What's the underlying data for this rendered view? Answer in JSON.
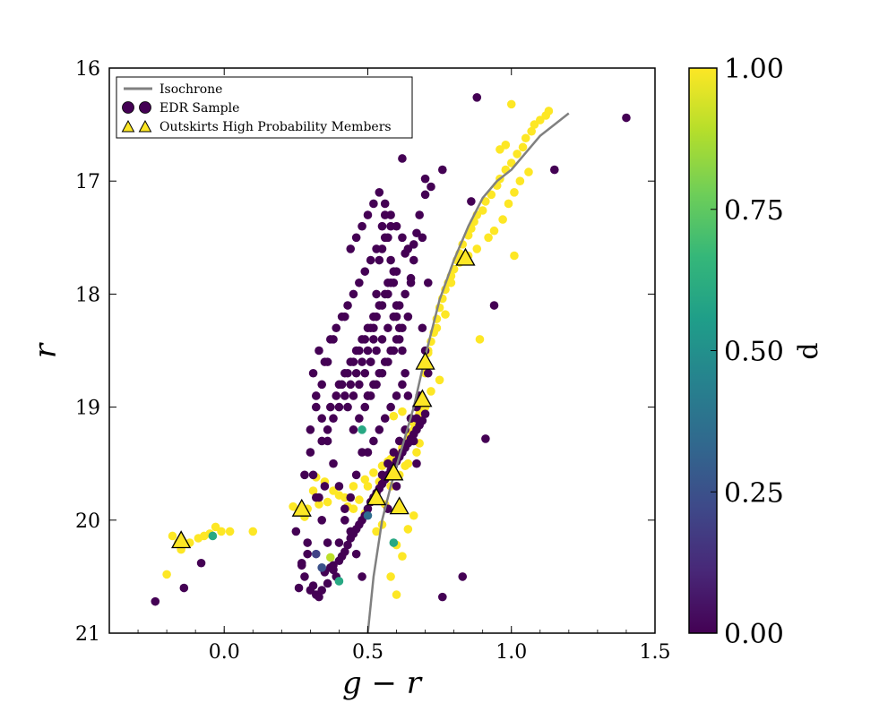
{
  "chart_data": {
    "type": "scatter",
    "title": "",
    "xlabel": "g − r",
    "ylabel": "r",
    "xlim": [
      -0.4,
      1.5
    ],
    "ylim": [
      21,
      16
    ],
    "y_inverted": true,
    "xticks": [
      0.0,
      0.5,
      1.0,
      1.5
    ],
    "xtick_labels": [
      "0.0",
      "0.5",
      "1.0",
      "1.5"
    ],
    "yticks": [
      16,
      17,
      18,
      19,
      20,
      21
    ],
    "ytick_labels": [
      "16",
      "17",
      "18",
      "19",
      "20",
      "21"
    ],
    "grid": false,
    "legend_position": "top-left",
    "legend": [
      {
        "label": "Isochrone",
        "marker": "line"
      },
      {
        "label": "EDR Sample",
        "marker": "circle"
      },
      {
        "label": "Outskirts High Probability Members",
        "marker": "triangle"
      }
    ],
    "colorbar": {
      "label": "d",
      "range": [
        0.0,
        1.0
      ],
      "ticks": [
        0.0,
        0.25,
        0.5,
        0.75,
        1.0
      ],
      "tick_labels": [
        "0.00",
        "0.25",
        "0.50",
        "0.75",
        "1.00"
      ],
      "colormap": "viridis",
      "stops": [
        "#440154",
        "#482878",
        "#3e4989",
        "#31688e",
        "#26828e",
        "#1f9e89",
        "#35b779",
        "#6ece58",
        "#b5de2b",
        "#fde725"
      ]
    },
    "isochrone": {
      "name": "Isochrone",
      "color": "#808080",
      "x": [
        0.5,
        0.52,
        0.55,
        0.58,
        0.62,
        0.66,
        0.7,
        0.75,
        0.8,
        0.85,
        0.9,
        0.95,
        1.0,
        1.05,
        1.1,
        1.15,
        1.2
      ],
      "y": [
        21.0,
        20.5,
        20.0,
        19.7,
        19.35,
        19.0,
        18.55,
        18.05,
        17.7,
        17.4,
        17.15,
        17.0,
        16.9,
        16.75,
        16.6,
        16.5,
        16.4
      ]
    },
    "high_probability_members": {
      "name": "Outskirts High Probability Members",
      "d": 1.0,
      "x": [
        -0.15,
        0.27,
        0.53,
        0.59,
        0.61,
        0.69,
        0.7,
        0.84
      ],
      "y": [
        20.18,
        19.9,
        19.8,
        19.58,
        19.88,
        18.93,
        18.6,
        17.68
      ]
    },
    "edr_sample": {
      "name": "EDR Sample",
      "members_d1": {
        "d": 1.0,
        "x": [
          -0.2,
          -0.16,
          -0.15,
          -0.12,
          -0.09,
          -0.07,
          -0.05,
          -0.03,
          -0.01,
          0.02,
          0.1,
          -0.18,
          0.24,
          0.26,
          0.28,
          0.33,
          0.36,
          0.4,
          0.45,
          0.49,
          0.52,
          0.55,
          0.57,
          0.58,
          0.6,
          0.62,
          0.63,
          0.64,
          0.65,
          0.66,
          0.67,
          0.68,
          0.68,
          0.69,
          0.7,
          0.71,
          0.72,
          0.73,
          0.74,
          0.75,
          0.76,
          0.77,
          0.78,
          0.79,
          0.8,
          0.81,
          0.82,
          0.83,
          0.85,
          0.86,
          0.87,
          0.88,
          0.9,
          0.91,
          0.93,
          0.95,
          0.96,
          0.98,
          1.0,
          1.02,
          1.04,
          1.05,
          1.07,
          1.08,
          1.1,
          1.12,
          1.13,
          0.62,
          0.6,
          0.64,
          0.66,
          0.55,
          0.53,
          0.49,
          0.45,
          0.42,
          0.38,
          0.35,
          0.32,
          0.58,
          0.61,
          0.63,
          0.72,
          0.75,
          0.89,
          1.01,
          0.6,
          0.58,
          0.66,
          0.7,
          0.62,
          0.59,
          0.56,
          0.43,
          0.47,
          0.31,
          0.29,
          0.5,
          0.54,
          0.57,
          0.64,
          0.67,
          0.68,
          0.71,
          0.74,
          0.77,
          0.79,
          0.82,
          0.85,
          0.88,
          0.92,
          0.94,
          0.97,
          0.99,
          1.01,
          1.03,
          1.06,
          0.98,
          0.96,
          1.0,
          0.6
        ],
        "y": [
          20.48,
          20.2,
          20.26,
          20.2,
          20.16,
          20.14,
          20.12,
          20.06,
          20.1,
          20.1,
          20.1,
          20.14,
          19.88,
          19.92,
          19.97,
          19.86,
          19.84,
          19.78,
          19.7,
          19.64,
          19.58,
          19.52,
          19.48,
          19.46,
          19.42,
          19.36,
          19.32,
          19.28,
          19.24,
          19.14,
          19.1,
          19.06,
          19.02,
          18.98,
          18.7,
          18.52,
          18.42,
          18.34,
          18.22,
          18.12,
          18.04,
          17.96,
          17.9,
          17.84,
          17.78,
          17.7,
          17.64,
          17.56,
          17.48,
          17.42,
          17.36,
          17.3,
          17.26,
          17.18,
          17.12,
          17.04,
          16.98,
          16.9,
          16.84,
          16.76,
          16.7,
          16.62,
          16.56,
          16.5,
          16.46,
          16.42,
          16.38,
          20.32,
          20.22,
          20.08,
          19.96,
          20.04,
          20.1,
          19.94,
          19.9,
          19.8,
          19.74,
          19.66,
          19.62,
          19.7,
          19.6,
          19.52,
          18.86,
          18.76,
          18.4,
          17.66,
          20.66,
          20.5,
          19.2,
          19.0,
          19.04,
          19.08,
          19.86,
          19.88,
          19.82,
          19.74,
          19.9,
          19.7,
          19.66,
          19.62,
          19.5,
          19.4,
          19.32,
          18.5,
          18.3,
          18.18,
          17.9,
          17.72,
          17.66,
          17.6,
          17.5,
          17.44,
          17.34,
          17.2,
          17.1,
          17.0,
          16.92,
          16.68,
          16.72,
          16.32,
          19.42
        ]
      },
      "members_d0": {
        "d": 0.0,
        "x": [
          -0.24,
          -0.08,
          -0.14,
          0.27,
          0.26,
          0.28,
          0.29,
          0.3,
          0.31,
          0.32,
          0.33,
          0.34,
          0.35,
          0.36,
          0.37,
          0.38,
          0.39,
          0.4,
          0.41,
          0.42,
          0.43,
          0.44,
          0.45,
          0.46,
          0.47,
          0.48,
          0.49,
          0.5,
          0.51,
          0.52,
          0.53,
          0.54,
          0.55,
          0.56,
          0.57,
          0.58,
          0.59,
          0.6,
          0.61,
          0.62,
          0.63,
          0.64,
          0.65,
          0.66,
          0.67,
          0.68,
          0.69,
          0.7,
          0.72,
          0.76,
          0.76,
          0.83,
          0.91,
          0.94,
          1.15,
          1.4,
          0.86,
          0.88,
          0.7,
          0.7,
          0.67,
          0.65,
          0.62,
          0.55,
          0.57,
          0.59,
          0.6,
          0.63,
          0.66,
          0.35,
          0.37,
          0.39,
          0.41,
          0.43,
          0.45,
          0.47,
          0.49,
          0.51,
          0.53,
          0.56,
          0.58,
          0.33,
          0.31,
          0.32,
          0.34,
          0.36,
          0.38,
          0.4,
          0.42,
          0.44,
          0.46,
          0.48,
          0.5,
          0.52,
          0.54,
          0.56,
          0.58,
          0.6,
          0.62,
          0.64,
          0.4,
          0.42,
          0.44,
          0.46,
          0.48,
          0.5,
          0.52,
          0.54,
          0.56,
          0.58,
          0.6,
          0.43,
          0.45,
          0.47,
          0.49,
          0.51,
          0.53,
          0.55,
          0.57,
          0.59,
          0.61,
          0.63,
          0.65,
          0.45,
          0.47,
          0.49,
          0.51,
          0.53,
          0.55,
          0.57,
          0.59,
          0.61,
          0.5,
          0.52,
          0.54,
          0.56,
          0.58,
          0.6,
          0.62,
          0.55,
          0.57,
          0.59,
          0.61,
          0.63,
          0.65,
          0.67,
          0.34,
          0.36,
          0.38,
          0.4,
          0.42,
          0.44,
          0.46,
          0.48,
          0.5,
          0.52,
          0.3,
          0.28,
          0.32,
          0.34,
          0.36,
          0.38,
          0.4,
          0.42,
          0.44,
          0.46,
          0.48,
          0.37,
          0.39,
          0.41,
          0.43,
          0.45,
          0.47,
          0.49,
          0.51,
          0.53,
          0.55,
          0.57,
          0.44,
          0.46,
          0.48,
          0.5,
          0.52,
          0.54,
          0.56,
          0.58,
          0.6,
          0.62,
          0.64,
          0.66,
          0.42,
          0.38,
          0.36,
          0.34,
          0.32,
          0.3,
          0.31,
          0.33,
          0.35,
          0.25,
          0.27,
          0.29,
          0.5,
          0.51,
          0.52,
          0.53,
          0.54,
          0.55,
          0.56,
          0.57,
          0.58,
          0.59,
          0.6,
          0.61,
          0.62,
          0.63,
          0.64,
          0.65,
          0.66,
          0.67,
          0.68,
          0.69,
          0.71,
          0.69,
          0.7,
          0.71,
          0.68,
          0.67,
          0.65,
          0.6,
          0.57
        ],
        "y": [
          20.72,
          20.38,
          20.6,
          20.38,
          20.6,
          20.5,
          20.3,
          20.62,
          20.58,
          20.66,
          20.68,
          20.62,
          20.46,
          20.56,
          20.42,
          20.44,
          20.5,
          20.36,
          20.32,
          20.28,
          20.22,
          20.16,
          20.12,
          20.08,
          20.04,
          20.0,
          19.96,
          19.9,
          19.84,
          19.8,
          19.76,
          19.72,
          19.68,
          19.64,
          19.6,
          19.56,
          19.52,
          19.48,
          19.44,
          19.4,
          19.36,
          19.32,
          19.28,
          19.24,
          19.2,
          19.16,
          19.12,
          19.06,
          17.05,
          16.9,
          20.68,
          20.5,
          19.28,
          18.1,
          16.9,
          16.44,
          17.18,
          16.26,
          16.98,
          17.12,
          17.46,
          17.86,
          16.8,
          17.6,
          17.9,
          17.8,
          18.2,
          17.64,
          17.56,
          18.6,
          18.4,
          18.3,
          18.2,
          18.1,
          18.0,
          17.9,
          17.8,
          17.7,
          17.6,
          17.5,
          17.4,
          18.5,
          18.7,
          18.9,
          19.1,
          19.3,
          19.5,
          19.7,
          19.9,
          20.1,
          20.3,
          20.5,
          18.9,
          18.8,
          18.7,
          18.6,
          18.5,
          18.4,
          18.3,
          18.2,
          18.8,
          18.7,
          18.6,
          18.5,
          18.4,
          18.3,
          18.2,
          18.1,
          18.0,
          17.9,
          17.8,
          19.0,
          18.9,
          18.8,
          18.7,
          18.6,
          18.5,
          18.4,
          18.3,
          18.2,
          18.1,
          18.0,
          17.9,
          19.2,
          19.1,
          19.0,
          18.9,
          18.8,
          18.7,
          18.6,
          18.5,
          18.4,
          19.4,
          19.3,
          19.2,
          19.1,
          19.0,
          18.9,
          18.8,
          19.6,
          19.5,
          19.4,
          19.3,
          19.2,
          19.1,
          19.0,
          19.3,
          19.2,
          19.1,
          19.0,
          18.9,
          18.8,
          18.7,
          18.6,
          18.5,
          18.4,
          19.4,
          19.6,
          19.8,
          20.0,
          20.2,
          20.4,
          20.2,
          20.0,
          19.8,
          19.6,
          19.4,
          19.0,
          18.9,
          18.8,
          18.7,
          18.6,
          18.5,
          18.4,
          18.3,
          18.2,
          18.1,
          18.0,
          17.6,
          17.5,
          17.4,
          17.3,
          17.2,
          17.1,
          17.2,
          17.3,
          17.4,
          17.5,
          17.6,
          17.7,
          18.2,
          18.4,
          18.6,
          18.8,
          19.0,
          19.2,
          19.6,
          19.8,
          19.7,
          20.1,
          20.4,
          20.2,
          18.9,
          18.6,
          18.3,
          18.0,
          17.7,
          17.4,
          17.3,
          17.5,
          17.7,
          17.9,
          18.1,
          18.3,
          18.5,
          18.7,
          18.9,
          19.1,
          19.3,
          19.5,
          17.3,
          17.5,
          17.9,
          18.3,
          18.5,
          18.7,
          18.9,
          19.1,
          19.3,
          19.7,
          19.9
        ]
      },
      "members_mid": [
        {
          "x": 0.32,
          "y": 20.3,
          "d": 0.2
        },
        {
          "x": 0.34,
          "y": 20.42,
          "d": 0.25
        },
        {
          "x": 0.37,
          "y": 20.33,
          "d": 0.9
        },
        {
          "x": 0.4,
          "y": 20.54,
          "d": 0.6
        },
        {
          "x": 0.48,
          "y": 19.2,
          "d": 0.6
        },
        {
          "x": 0.59,
          "y": 20.2,
          "d": 0.6
        },
        {
          "x": -0.04,
          "y": 20.14,
          "d": 0.6
        },
        {
          "x": 0.5,
          "y": 19.96,
          "d": 0.35
        }
      ]
    }
  }
}
